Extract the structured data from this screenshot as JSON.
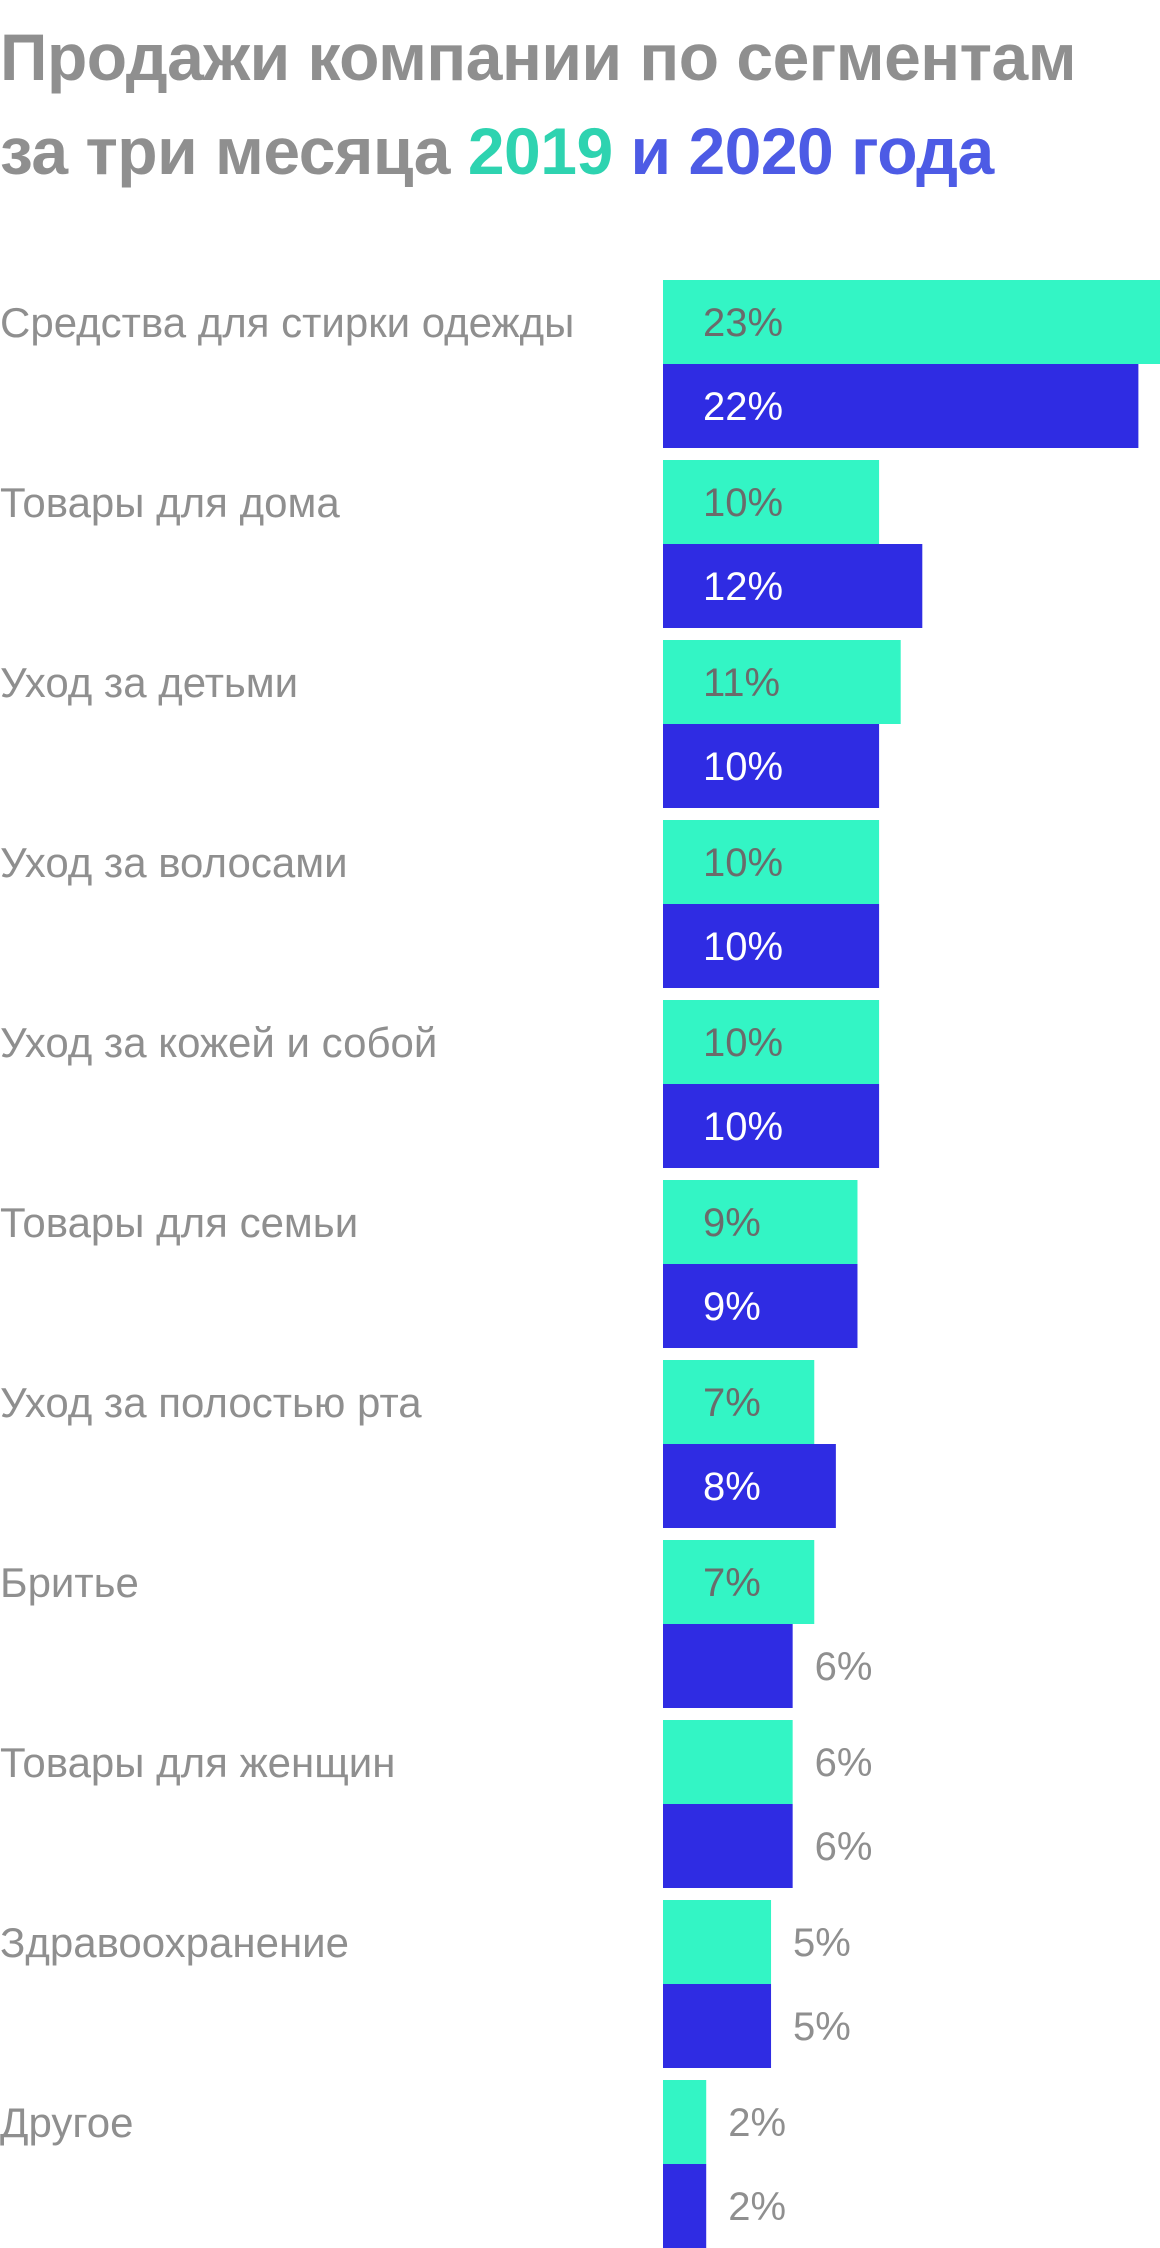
{
  "title": {
    "part1": "Продажи компании по сегментам за три месяца",
    "year1": "2019",
    "conj": "и",
    "year2": "2020 года"
  },
  "colors": {
    "series_2019": "#33f5c5",
    "series_2020": "#2f2ce3",
    "text_gray": "#8f8f8f",
    "label_on_2019": "#6b6b6b",
    "label_on_2020": "#ffffff"
  },
  "chart_data": {
    "type": "bar",
    "orientation": "horizontal",
    "title": "Продажи компании по сегментам за три месяца 2019 и 2020 года",
    "categories": [
      "Средства для стирки одежды",
      "Товары для дома",
      "Уход за детьми",
      "Уход за волосами",
      "Уход за кожей и собой",
      "Товары для семьи",
      "Уход за полостью рта",
      "Бритье",
      "Товары для женщин",
      "Здравоохранение",
      "Другое"
    ],
    "series": [
      {
        "name": "2019",
        "values": [
          23,
          10,
          11,
          10,
          10,
          9,
          7,
          7,
          6,
          5,
          2
        ],
        "labels": [
          "23%",
          "10%",
          "11%",
          "10%",
          "10%",
          "9%",
          "7%",
          "7%",
          "6%",
          "5%",
          "2%"
        ]
      },
      {
        "name": "2020",
        "values": [
          22,
          12,
          10,
          10,
          10,
          9,
          8,
          6,
          6,
          5,
          2
        ],
        "labels": [
          "22%",
          "12%",
          "10%",
          "10%",
          "10%",
          "9%",
          "8%",
          "6%",
          "6%",
          "5%",
          "2%"
        ]
      }
    ],
    "unit": "%",
    "xlim": [
      0,
      23
    ],
    "grid": false,
    "legend": "in-title"
  }
}
